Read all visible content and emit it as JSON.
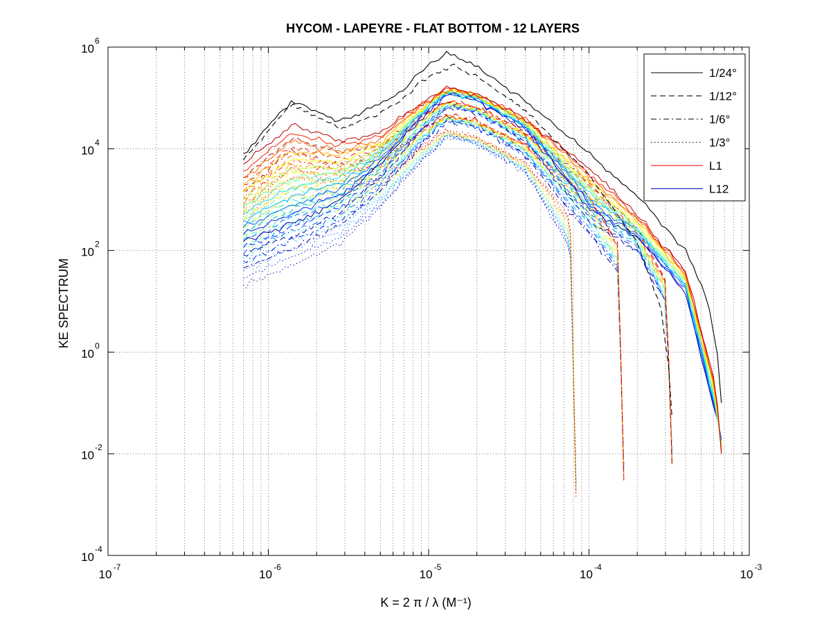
{
  "chart_data": {
    "type": "line",
    "title": "HYCOM - LAPEYRE - FLAT BOTTOM - 12 LAYERS",
    "xlabel": "K = 2 π / λ  (M⁻¹)",
    "ylabel": "KE SPECTRUM",
    "xscale": "log",
    "yscale": "log",
    "xlim": [
      1e-07,
      0.001
    ],
    "ylim": [
      0.0001,
      1000000.0
    ],
    "x_ticks": [
      {
        "base": "10",
        "exp": "-7"
      },
      {
        "base": "10",
        "exp": "-6"
      },
      {
        "base": "10",
        "exp": "-5"
      },
      {
        "base": "10",
        "exp": "-4"
      },
      {
        "base": "10",
        "exp": "-3"
      }
    ],
    "y_ticks": [
      {
        "base": "10",
        "exp": "-4"
      },
      {
        "base": "10",
        "exp": "-2"
      },
      {
        "base": "10",
        "exp": "0"
      },
      {
        "base": "10",
        "exp": "2"
      },
      {
        "base": "10",
        "exp": "4"
      },
      {
        "base": "10",
        "exp": "6"
      }
    ],
    "grid": true,
    "legend_position": "top-right",
    "legend": [
      {
        "label": "1/24°",
        "style": "solid",
        "color": "#000000"
      },
      {
        "label": "1/12°",
        "style": "dashed",
        "color": "#000000"
      },
      {
        "label": "1/6°",
        "style": "dashdot",
        "color": "#000000"
      },
      {
        "label": "1/3°",
        "style": "dotted",
        "color": "#000000"
      },
      {
        "label": "L1",
        "style": "solid",
        "color": "#e60000"
      },
      {
        "label": "L12",
        "style": "solid",
        "color": "#0000c8"
      }
    ],
    "layer_colormap": [
      "#b40000",
      "#ff2000",
      "#ff6a00",
      "#ffb400",
      "#ffff00",
      "#b8ff48",
      "#62ffa0",
      "#1ae6e6",
      "#00b4ff",
      "#0068ff",
      "#0020ff",
      "#0000a0"
    ],
    "resolutions": [
      {
        "name": "1/24°",
        "style": "solid",
        "kmax": 0.00067
      },
      {
        "name": "1/12°",
        "style": "dashed",
        "kmax": 0.00033
      },
      {
        "name": "1/6°",
        "style": "dashdot",
        "kmax": 0.000165
      },
      {
        "name": "1/3°",
        "style": "dotted",
        "kmax": 8.3e-05
      }
    ],
    "series": [
      {
        "resolution": "1/24°",
        "total": true,
        "color": "#000000",
        "style": "solid",
        "x": [
          7e-07,
          1.4e-06,
          2.8e-06,
          5e-06,
          6.8e-06,
          9e-06,
          1.3e-05,
          2e-05,
          4e-05,
          0.0001,
          0.0002,
          0.0004,
          0.00055,
          0.00063,
          0.00067
        ],
        "y": [
          8000,
          90000,
          35000,
          75000,
          130000,
          350000,
          750000,
          400000,
          90000,
          8000,
          1200,
          100,
          10,
          1,
          0.1
        ]
      },
      {
        "resolution": "1/12°",
        "total": true,
        "color": "#000000",
        "style": "dashed",
        "x": [
          7e-07,
          1.4e-06,
          2.8e-06,
          5e-06,
          6.8e-06,
          9e-06,
          1.4e-05,
          2.2e-05,
          4.5e-05,
          0.0001,
          0.0002,
          0.00028,
          0.00032,
          0.00033
        ],
        "y": [
          6000,
          80000,
          25000,
          50000,
          90000,
          220000,
          450000,
          220000,
          40000,
          3000,
          150,
          8,
          0.3,
          0.05
        ]
      },
      {
        "resolution": "1/24°",
        "layer": "L1",
        "color": "#e60000",
        "style": "solid",
        "x": [
          7e-07,
          1.4e-06,
          2.8e-06,
          5e-06,
          9e-06,
          1.3e-05,
          2e-05,
          4e-05,
          0.0001,
          0.0002,
          0.0004,
          0.0006,
          0.00067
        ],
        "y": [
          5000,
          30000,
          15000,
          20000,
          80000,
          160000,
          120000,
          40000,
          4000,
          500,
          40,
          1,
          0.1
        ]
      },
      {
        "resolution": "1/24°",
        "layer": "L12",
        "color": "#0000a0",
        "style": "solid",
        "x": [
          7e-07,
          1.4e-06,
          2.8e-06,
          5e-06,
          9e-06,
          1.3e-05,
          2e-05,
          4e-05,
          0.0001,
          0.0002,
          0.0004,
          0.0006,
          0.00067
        ],
        "y": [
          150,
          350,
          1000,
          5000,
          40000,
          120000,
          90000,
          25000,
          700,
          180,
          15,
          0.5,
          0.003
        ]
      }
    ]
  }
}
